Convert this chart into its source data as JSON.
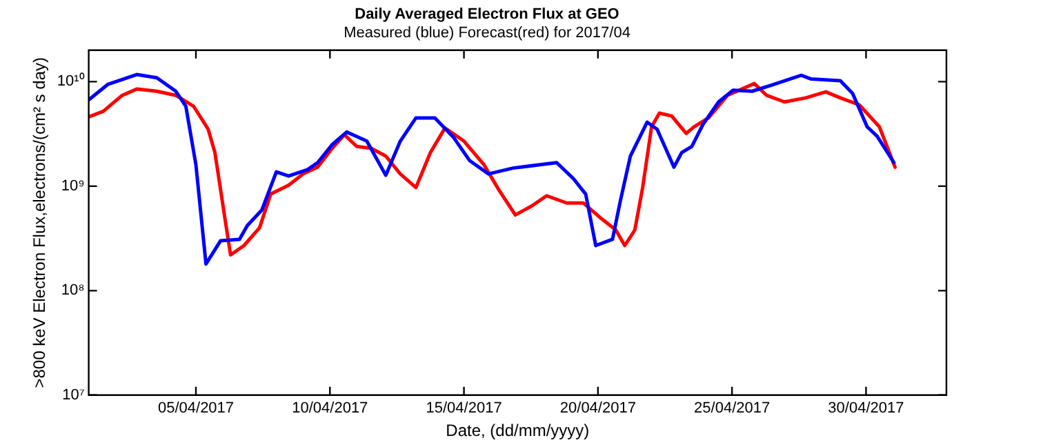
{
  "chart_data": {
    "type": "line",
    "title": "Daily Averaged Electron Flux at GEO",
    "subtitle": "Measured (blue) Forecast(red) for 2017/04",
    "xlabel": "Date, (dd/mm/yyyy)",
    "ylabel": ">800 keV Electron Flux,electrons/(cm² s day)",
    "log": "y",
    "grid": false,
    "legend": false,
    "marker": "none",
    "line_style": "solid",
    "xlim": [
      "2017-04-01",
      "2017-05-03"
    ],
    "xticks": [
      {
        "value": "2017-04-05",
        "label": "05/04/2017"
      },
      {
        "value": "2017-04-10",
        "label": "10/04/2017"
      },
      {
        "value": "2017-04-15",
        "label": "15/04/2017"
      },
      {
        "value": "2017-04-20",
        "label": "20/04/2017"
      },
      {
        "value": "2017-04-25",
        "label": "25/04/2017"
      },
      {
        "value": "2017-04-30",
        "label": "30/04/2017"
      }
    ],
    "ylim": [
      10000000,
      20000000000
    ],
    "yticks": [
      {
        "value": 10000000,
        "label": "10⁷"
      },
      {
        "value": 100000000,
        "label": "10⁸"
      },
      {
        "value": 1000000000,
        "label": "10⁹"
      },
      {
        "value": 10000000000,
        "label": "10¹⁰"
      }
    ],
    "series": [
      {
        "color": "#0000ff",
        "x": [
          "2017-04-01T00:00",
          "2017-04-01T17:00",
          "2017-04-02T19:00",
          "2017-04-03T13:00",
          "2017-04-04T06:00",
          "2017-04-04T15:00",
          "2017-04-05T00:00",
          "2017-04-05T09:00",
          "2017-04-05T22:00",
          "2017-04-06T15:00",
          "2017-04-06T22:00",
          "2017-04-07T11:00",
          "2017-04-08T00:00",
          "2017-04-08T11:00",
          "2017-04-09T04:00",
          "2017-04-09T13:00",
          "2017-04-10T02:00",
          "2017-04-10T15:00",
          "2017-04-11T09:00",
          "2017-04-12T02:00",
          "2017-04-12T15:00",
          "2017-04-13T05:00",
          "2017-04-13T22:00",
          "2017-04-14T15:00",
          "2017-04-15T05:00",
          "2017-04-15T22:00",
          "2017-04-16T20:00",
          "2017-04-18T11:00",
          "2017-04-19T02:00",
          "2017-04-19T13:00",
          "2017-04-19T22:00",
          "2017-04-20T13:00",
          "2017-04-20T20:00",
          "2017-04-21T05:00",
          "2017-04-21T20:00",
          "2017-04-22T05:00",
          "2017-04-22T20:00",
          "2017-04-23T03:00",
          "2017-04-23T12:00",
          "2017-04-23T22:00",
          "2017-04-24T12:00",
          "2017-04-25T01:00",
          "2017-04-25T18:00",
          "2017-04-26T12:00",
          "2017-04-27T14:00",
          "2017-04-27T23:00",
          "2017-04-29T01:00",
          "2017-04-29T12:00",
          "2017-04-30T01:00",
          "2017-04-30T10:00",
          "2017-05-01T01:00"
        ],
        "values": [
          6700000000.0,
          9400000000.0,
          11700000000.0,
          10900000000.0,
          8100000000.0,
          5800000000.0,
          1600000000.0,
          180000000.0,
          300000000.0,
          310000000.0,
          420000000.0,
          590000000.0,
          1370000000.0,
          1250000000.0,
          1440000000.0,
          1680000000.0,
          2500000000.0,
          3300000000.0,
          2700000000.0,
          1270000000.0,
          2700000000.0,
          4500000000.0,
          4500000000.0,
          2900000000.0,
          1760000000.0,
          1310000000.0,
          1490000000.0,
          1680000000.0,
          1180000000.0,
          840000000.0,
          270000000.0,
          310000000.0,
          720000000.0,
          1940000000.0,
          4100000000.0,
          3500000000.0,
          1520000000.0,
          2100000000.0,
          2400000000.0,
          3900000000.0,
          6400000000.0,
          8300000000.0,
          8100000000.0,
          9300000000.0,
          11500000000.0,
          10600000000.0,
          10200000000.0,
          7700000000.0,
          3700000000.0,
          3000000000.0,
          1680000000.0
        ]
      },
      {
        "color": "#ff0000",
        "x": [
          "2017-04-01T00:00",
          "2017-04-01T13:00",
          "2017-04-02T06:00",
          "2017-04-02T19:00",
          "2017-04-03T13:00",
          "2017-04-04T06:00",
          "2017-04-04T22:00",
          "2017-04-05T11:00",
          "2017-04-05T17:00",
          "2017-04-06T02:00",
          "2017-04-06T07:00",
          "2017-04-06T19:00",
          "2017-04-07T09:00",
          "2017-04-07T19:00",
          "2017-04-08T11:00",
          "2017-04-09T00:00",
          "2017-04-09T13:00",
          "2017-04-10T02:00",
          "2017-04-10T13:00",
          "2017-04-11T00:00",
          "2017-04-11T13:00",
          "2017-04-12T02:00",
          "2017-04-12T15:00",
          "2017-04-13T05:00",
          "2017-04-13T18:00",
          "2017-04-14T07:00",
          "2017-04-15T00:00",
          "2017-04-15T18:00",
          "2017-04-16T07:00",
          "2017-04-16T22:00",
          "2017-04-17T13:00",
          "2017-04-18T02:00",
          "2017-04-18T20:00",
          "2017-04-19T11:00",
          "2017-04-20T03:00",
          "2017-04-20T16:00",
          "2017-04-21T00:00",
          "2017-04-21T09:00",
          "2017-04-21T16:00",
          "2017-04-22T00:00",
          "2017-04-22T07:00",
          "2017-04-22T18:00",
          "2017-04-23T07:00",
          "2017-04-23T14:00",
          "2017-04-24T03:00",
          "2017-04-24T20:00",
          "2017-04-25T20:00",
          "2017-04-26T07:00",
          "2017-04-26T23:00",
          "2017-04-27T18:00",
          "2017-04-28T12:00",
          "2017-04-29T01:00",
          "2017-04-29T18:00",
          "2017-04-30T12:00",
          "2017-05-01T02:00"
        ],
        "values": [
          4600000000.0,
          5200000000.0,
          7400000000.0,
          8500000000.0,
          8100000000.0,
          7400000000.0,
          5800000000.0,
          3500000000.0,
          2100000000.0,
          490000000.0,
          220000000.0,
          270000000.0,
          400000000.0,
          840000000.0,
          1020000000.0,
          1310000000.0,
          1520000000.0,
          2300000000.0,
          3100000000.0,
          2400000000.0,
          2300000000.0,
          1940000000.0,
          1310000000.0,
          970000000.0,
          2100000000.0,
          3600000000.0,
          2700000000.0,
          1600000000.0,
          930000000.0,
          530000000.0,
          650000000.0,
          810000000.0,
          690000000.0,
          690000000.0,
          490000000.0,
          380000000.0,
          270000000.0,
          380000000.0,
          970000000.0,
          3700000000.0,
          5000000000.0,
          4700000000.0,
          3200000000.0,
          3700000000.0,
          4500000000.0,
          7400000000.0,
          9600000000.0,
          7400000000.0,
          6400000000.0,
          7000000000.0,
          8000000000.0,
          7000000000.0,
          6000000000.0,
          3700000000.0,
          1520000000.0
        ]
      }
    ]
  }
}
